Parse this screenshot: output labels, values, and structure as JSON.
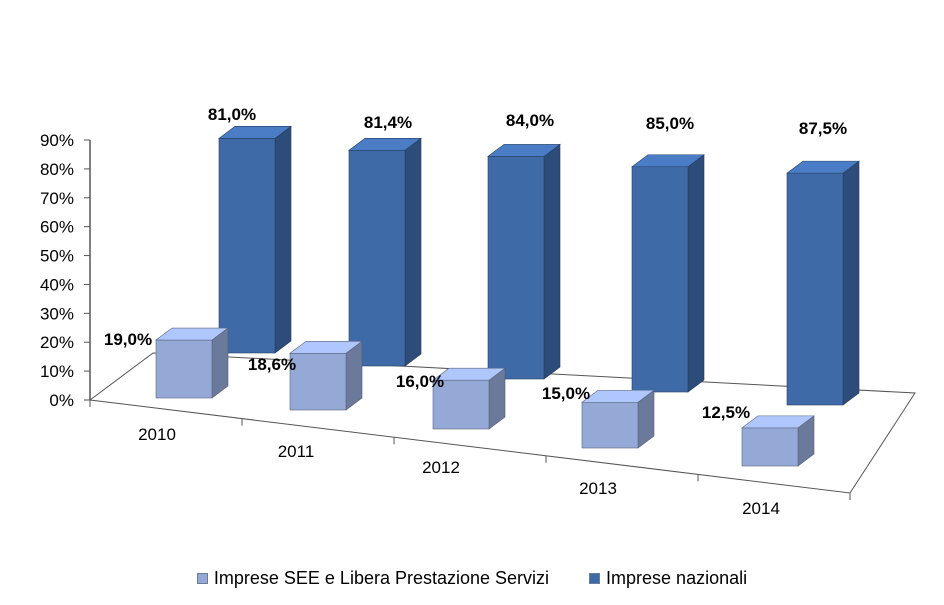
{
  "chart_data": {
    "type": "bar",
    "categories": [
      "2010",
      "2011",
      "2012",
      "2013",
      "2014"
    ],
    "series": [
      {
        "name": "Imprese SEE e Libera Prestazione Servizi",
        "values": [
          19.0,
          18.6,
          16.0,
          15.0,
          12.5
        ],
        "labels": [
          "19,0%",
          "18,6%",
          "16,0%",
          "15,0%",
          "12,5%"
        ],
        "color": "#95a9d6"
      },
      {
        "name": "Imprese nazionali",
        "values": [
          81.0,
          81.4,
          84.0,
          85.0,
          87.5
        ],
        "labels": [
          "81,0%",
          "81,4%",
          "84,0%",
          "85,0%",
          "87,5%"
        ],
        "color": "#3f6aa8"
      }
    ],
    "y_ticks": [
      "0%",
      "10%",
      "20%",
      "30%",
      "40%",
      "50%",
      "60%",
      "70%",
      "80%",
      "90%"
    ],
    "ylim": [
      0,
      90
    ],
    "grid": false,
    "legend_position": "bottom",
    "three_d": true
  }
}
